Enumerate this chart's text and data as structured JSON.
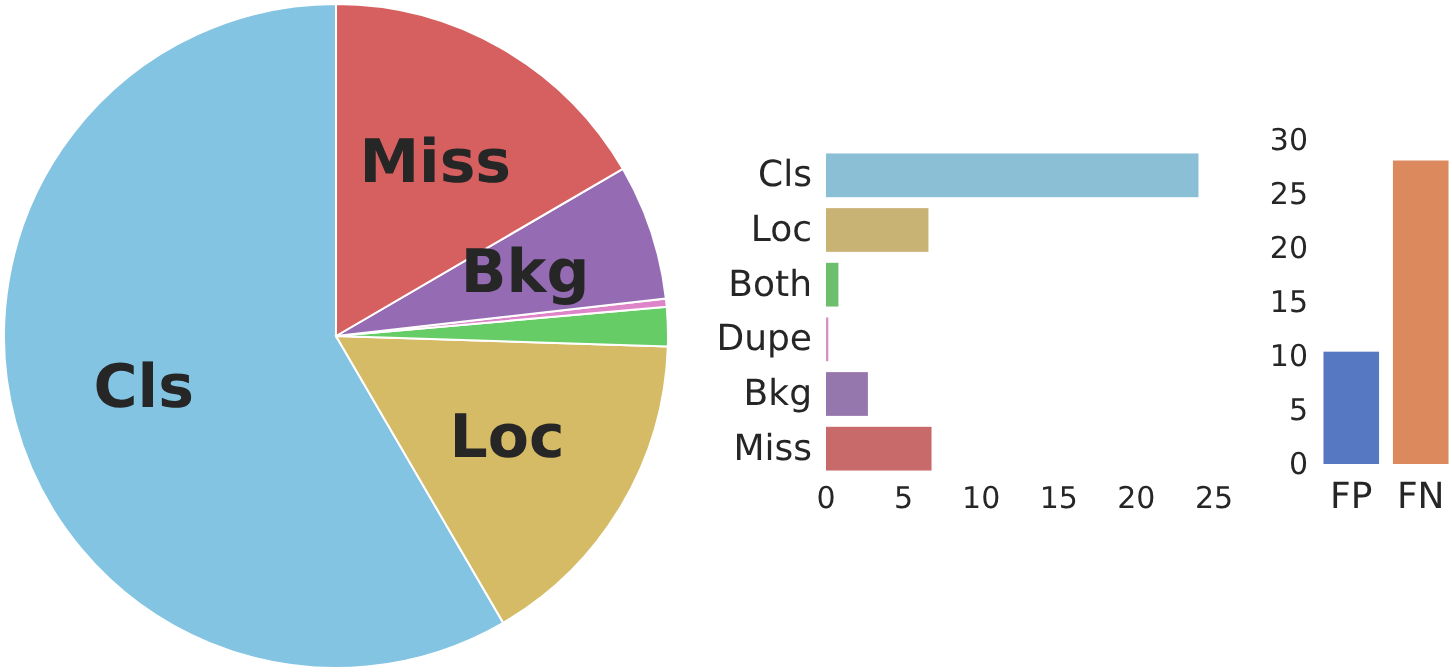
{
  "chart_data": [
    {
      "type": "pie",
      "categories": [
        "Cls",
        "Loc",
        null,
        null,
        "Bkg",
        "Miss"
      ],
      "values": [
        58.4,
        16.1,
        1.9,
        0.4,
        6.6,
        16.6
      ],
      "colors": [
        "#82c4e1",
        "#d5bb66",
        "#66cc66",
        "#dd85c8",
        "#956cb4",
        "#d65f5f"
      ]
    },
    {
      "type": "bar",
      "orientation": "horizontal",
      "categories": [
        "Cls",
        "Loc",
        "Both",
        "Dupe",
        "Bkg",
        "Miss"
      ],
      "values": [
        24.0,
        6.6,
        0.8,
        0.15,
        2.7,
        6.8
      ],
      "colors": [
        "#8bbfd6",
        "#c9b374",
        "#6dbf6d",
        "#d98fc8",
        "#9677ad",
        "#c96a6a"
      ],
      "xlim": [
        0,
        25
      ],
      "xticks": [
        0,
        5,
        10,
        15,
        20,
        25
      ]
    },
    {
      "type": "bar",
      "categories": [
        "FP",
        "FN"
      ],
      "values": [
        10.4,
        28.1
      ],
      "colors": [
        "#5677c1",
        "#dc8a5d"
      ],
      "ylim": [
        0,
        30
      ],
      "yticks": [
        0,
        5,
        10,
        15,
        20,
        25,
        30
      ]
    }
  ]
}
